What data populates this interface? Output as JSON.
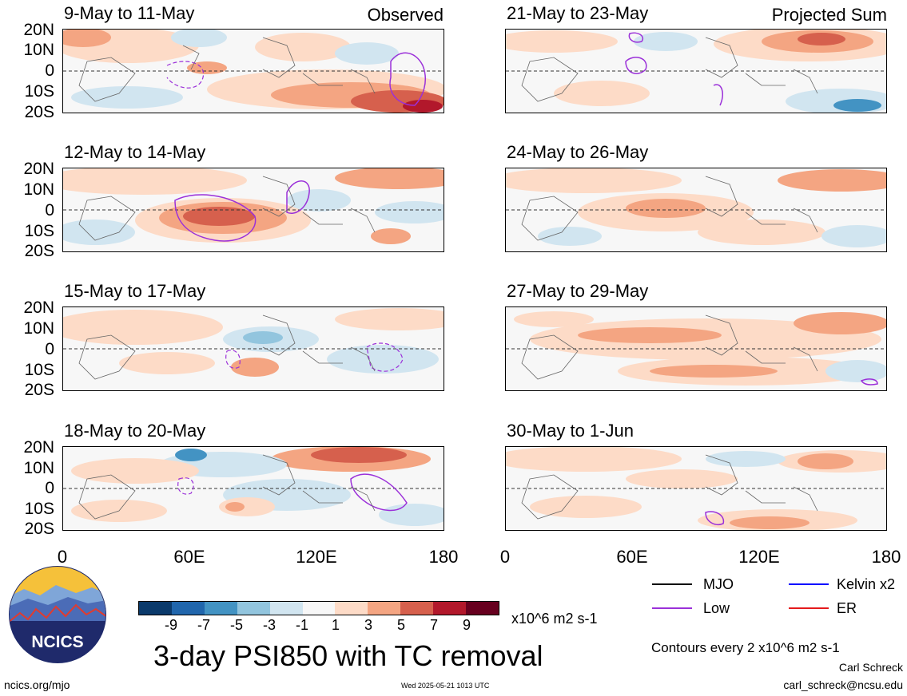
{
  "panels": [
    {
      "title": "9-May to 11-May",
      "corner": "Observed"
    },
    {
      "title": "12-May to 14-May"
    },
    {
      "title": "15-May to 17-May"
    },
    {
      "title": "18-May to 20-May"
    },
    {
      "title": "21-May to 23-May",
      "corner": "Projected Sum"
    },
    {
      "title": "24-May to 26-May"
    },
    {
      "title": "27-May to 29-May"
    },
    {
      "title": "30-May to 1-Jun"
    }
  ],
  "lat_labels": [
    "20N",
    "10N",
    "0",
    "10S",
    "20S"
  ],
  "lon_labels": [
    "0",
    "60E",
    "120E",
    "180"
  ],
  "colorbar": {
    "ticks": [
      "-9",
      "-7",
      "-5",
      "-3",
      "-1",
      "1",
      "3",
      "5",
      "7",
      "9"
    ],
    "colors": [
      "#0b3a6b",
      "#2166ac",
      "#4393c3",
      "#92c5de",
      "#d1e5f0",
      "#f7f7f7",
      "#fddbc7",
      "#f4a582",
      "#d6604d",
      "#b2182b",
      "#67001f"
    ],
    "units": "x10^6 m2 s-1"
  },
  "legend": {
    "items": [
      {
        "label": "MJO",
        "color": "#000000"
      },
      {
        "label": "Kelvin x2",
        "color": "#0000ff"
      },
      {
        "label": "Low",
        "color": "#9b30d9"
      },
      {
        "label": "ER",
        "color": "#e41a1c"
      }
    ],
    "contours_note": "Contours every 2 x10^6 m2 s-1"
  },
  "main_title": "3-day PSI850 with TC removal",
  "logo_text": "NCICS",
  "footer": {
    "url": "ncics.org/mjo",
    "timestamp": "Wed 2025-05-21 1013 UTC",
    "author": "Carl Schreck",
    "email": "carl_schreck@ncsu.edu"
  }
}
